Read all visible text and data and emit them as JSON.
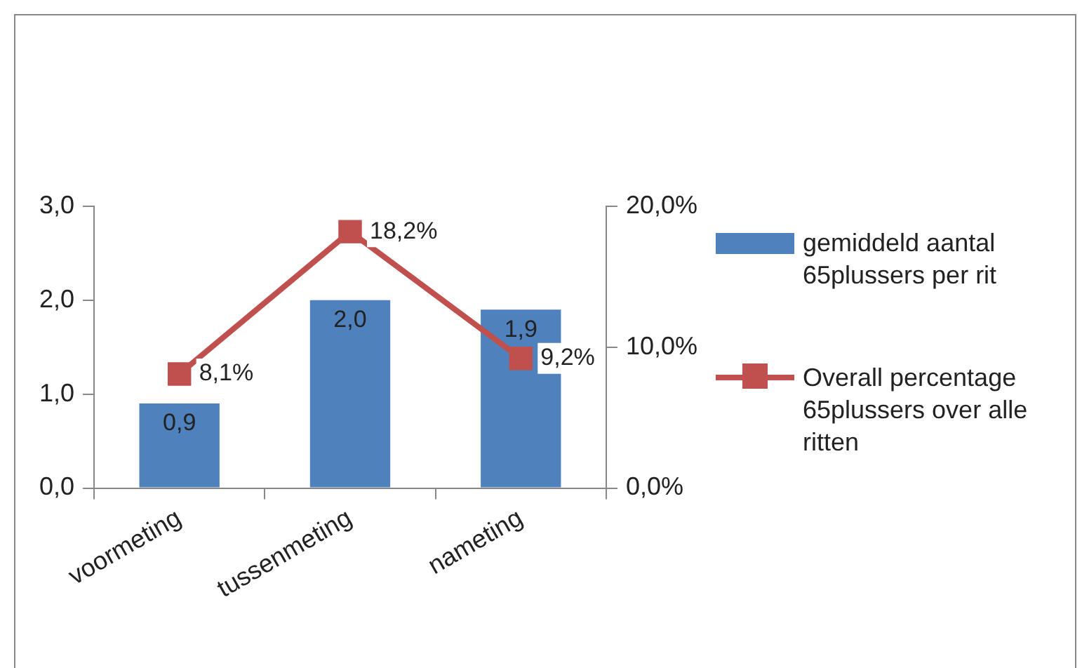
{
  "chart_data": {
    "type": "bar",
    "categories": [
      "voormeting",
      "tussenmeting",
      "nameting"
    ],
    "series": [
      {
        "name": "gemiddeld aantal 65plussers per rit",
        "color": "#4f81bd",
        "values": [
          0.9,
          2.0,
          1.9
        ],
        "value_labels": [
          "0,9",
          "2,0",
          "1,9"
        ]
      },
      {
        "name": "Overall percentage 65plussers over alle ritten",
        "type": "line",
        "axis": "y2",
        "color": "#c0504d",
        "values": [
          8.1,
          18.2,
          9.2
        ],
        "value_labels": [
          "8,1%",
          "18,2%",
          "9,2%"
        ]
      }
    ],
    "ylim": [
      0,
      3
    ],
    "yticks": [
      {
        "value": 0,
        "label": "0,0"
      },
      {
        "value": 1,
        "label": "1,0"
      },
      {
        "value": 2,
        "label": "2,0"
      },
      {
        "value": 3,
        "label": "3,0"
      }
    ],
    "y2lim": [
      0,
      20
    ],
    "y2ticks": [
      {
        "value": 0,
        "label": "0,0%"
      },
      {
        "value": 10,
        "label": "10,0%"
      },
      {
        "value": 20,
        "label": "20,0%"
      }
    ],
    "grid": false,
    "legend": "right",
    "marker": "square",
    "line_style": "solid"
  }
}
